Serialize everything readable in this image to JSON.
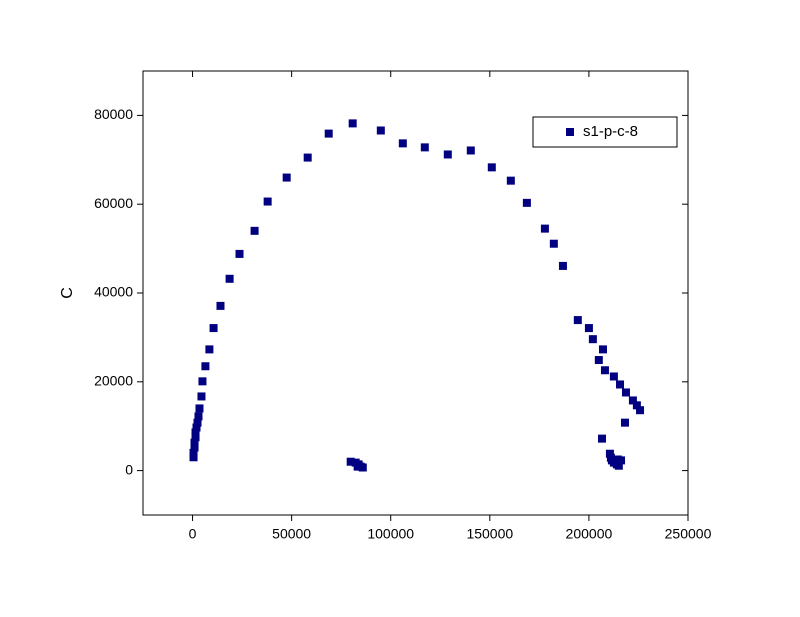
{
  "chart_data": {
    "type": "scatter",
    "ylabel": "C",
    "xlim": [
      -25000,
      250000
    ],
    "ylim": [
      -10000,
      90000
    ],
    "xticks": [
      0,
      50000,
      100000,
      150000,
      200000,
      250000
    ],
    "yticks": [
      0,
      20000,
      40000,
      60000,
      80000
    ],
    "legend": "upper right",
    "series": [
      {
        "name": "s1-p-c-8",
        "color": "#000080",
        "marker": "square",
        "x": [
          500,
          500,
          1000,
          1000,
          1500,
          1500,
          2000,
          2500,
          3000,
          3500,
          4500,
          5000,
          6500,
          8500,
          10600,
          14100,
          18700,
          23700,
          31300,
          37900,
          47500,
          58100,
          68700,
          80800,
          95000,
          106100,
          117200,
          128800,
          140400,
          151000,
          160600,
          168700,
          177800,
          182300,
          186900,
          194400,
          200000,
          202000,
          207100,
          205000,
          208100,
          212600,
          215700,
          218700,
          222200,
          224200,
          225800,
          218200,
          206600,
          210600,
          211100,
          211600,
          212600,
          214600,
          216200,
          214100,
          215100,
          79800,
          82300,
          83800,
          84800,
          85900,
          83300
        ],
        "values": [
          3000,
          4000,
          5200,
          6300,
          7500,
          8600,
          9700,
          10800,
          12200,
          14000,
          16700,
          20100,
          23500,
          27300,
          32100,
          37100,
          43200,
          48800,
          54000,
          60600,
          66000,
          70500,
          75900,
          78200,
          76600,
          73700,
          72800,
          71200,
          72100,
          68300,
          65300,
          60300,
          54500,
          51100,
          46100,
          33900,
          32100,
          29600,
          27300,
          24900,
          22600,
          21200,
          19400,
          17600,
          15800,
          14700,
          13600,
          10800,
          7200,
          3800,
          2900,
          2300,
          1800,
          2500,
          2300,
          1400,
          1100,
          2000,
          1800,
          1400,
          900,
          700,
          900
        ]
      }
    ]
  }
}
